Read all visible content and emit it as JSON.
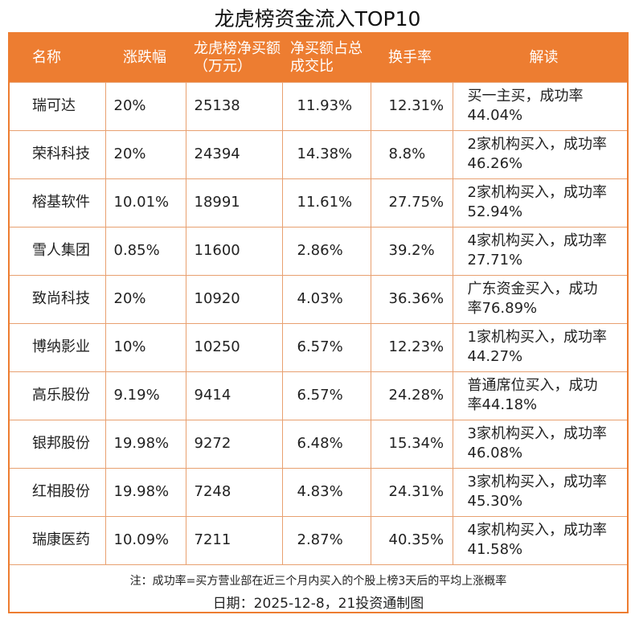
{
  "title": "龙虎榜资金流入TOP10",
  "headers": [
    "名称",
    "涨跌幅",
    "龙虎榜净买额（万元）",
    "净买额占总成交比",
    "换手率",
    "解读"
  ],
  "rows": [
    [
      "瑞可达",
      "20%",
      "25138",
      "11.93%",
      "12.31%",
      "买一主买，成功率44.04%"
    ],
    [
      "荣科科技",
      "20%",
      "24394",
      "14.38%",
      "8.8%",
      "2家机构买入，成功率46.26%"
    ],
    [
      "榕基软件",
      "10.01%",
      "18991",
      "11.61%",
      "27.75%",
      "2家机构买入，成功率52.94%"
    ],
    [
      "雪人集团",
      "0.85%",
      "11600",
      "2.86%",
      "39.2%",
      "4家机构买入，成功率27.71%"
    ],
    [
      "致尚科技",
      "20%",
      "10920",
      "4.03%",
      "36.36%",
      "广东资金买入，成功率76.89%"
    ],
    [
      "博纳影业",
      "10%",
      "10250",
      "6.57%",
      "12.23%",
      "1家机构买入，成功率44.27%"
    ],
    [
      "高乐股份",
      "9.19%",
      "9414",
      "6.57%",
      "24.28%",
      "普通席位买入，成功率44.18%"
    ],
    [
      "银邦股份",
      "19.98%",
      "9272",
      "6.48%",
      "15.34%",
      "3家机构买入，成功率46.08%"
    ],
    [
      "红相股份",
      "19.98%",
      "7248",
      "4.83%",
      "24.31%",
      "3家机构买入，成功率45.30%"
    ],
    [
      "瑞康医药",
      "10.09%",
      "7211",
      "2.87%",
      "40.35%",
      "4家机构买入，成功率41.58%"
    ]
  ],
  "footer": {
    "note": "注：成功率=买方营业部在近三个月内买入的个股上榜3天后的平均上涨概率",
    "date": "日期：2025-12-8，21投资通制图"
  },
  "colors": {
    "header": "#ed7d31"
  }
}
